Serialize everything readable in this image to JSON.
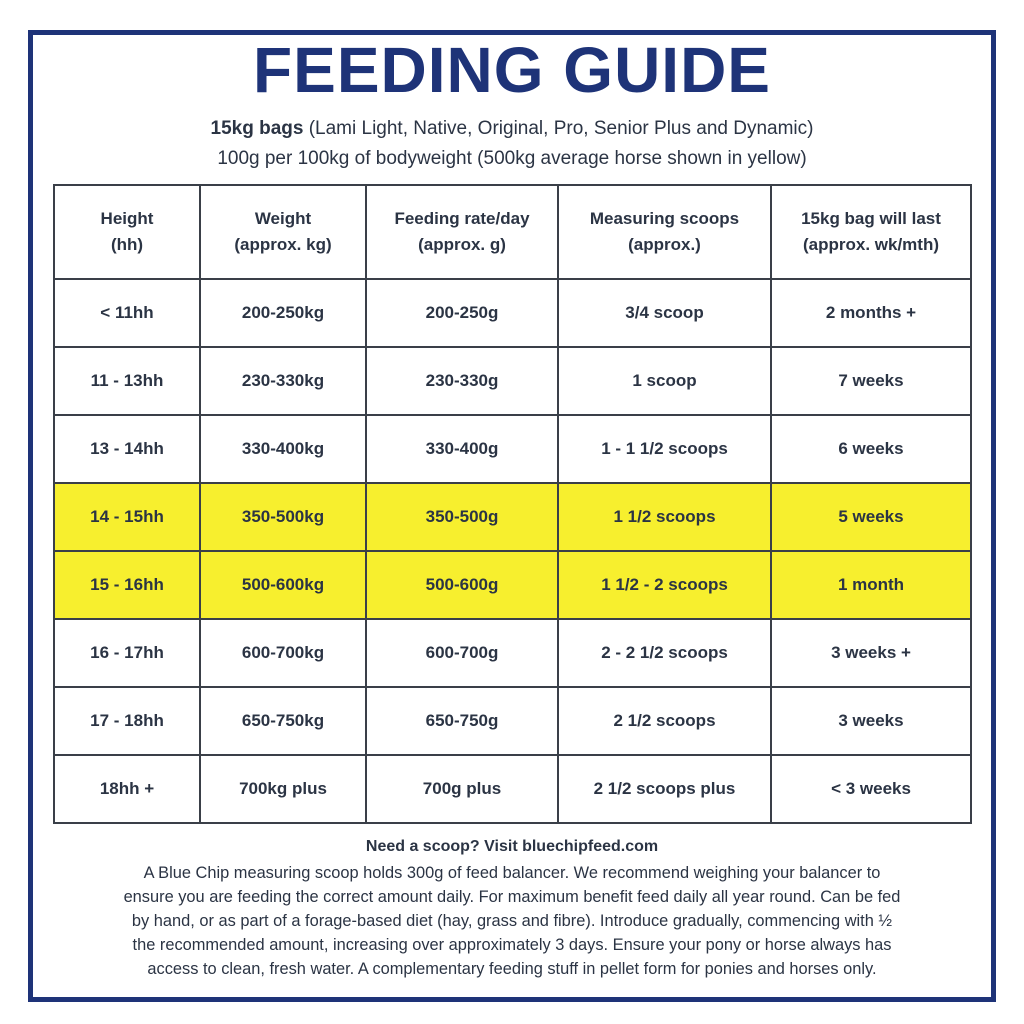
{
  "title": "FEEDING GUIDE",
  "subtitle": {
    "bold": "15kg bags",
    "rest": " (Lami Light, Native, Original, Pro, Senior Plus and Dynamic)",
    "line2": "100g per 100kg of bodyweight (500kg average horse shown in yellow)"
  },
  "colors": {
    "border": "#1e3378",
    "title": "#1e3378",
    "highlight": "#f7ef2e"
  },
  "table": {
    "headers": [
      [
        "Height",
        "(hh)"
      ],
      [
        "Weight",
        "(approx. kg)"
      ],
      [
        "Feeding rate/day",
        "(approx. g)"
      ],
      [
        "Measuring scoops",
        "(approx.)"
      ],
      [
        "15kg bag will last",
        "(approx. wk/mth)"
      ]
    ],
    "rows": [
      {
        "cells": [
          "< 11hh",
          "200-250kg",
          "200-250g",
          "3/4 scoop",
          "2 months +"
        ],
        "highlight": false
      },
      {
        "cells": [
          "11 - 13hh",
          "230-330kg",
          "230-330g",
          "1 scoop",
          "7 weeks"
        ],
        "highlight": false
      },
      {
        "cells": [
          "13 - 14hh",
          "330-400kg",
          "330-400g",
          "1 - 1 1/2 scoops",
          "6 weeks"
        ],
        "highlight": false
      },
      {
        "cells": [
          "14 - 15hh",
          "350-500kg",
          "350-500g",
          "1 1/2 scoops",
          "5 weeks"
        ],
        "highlight": true
      },
      {
        "cells": [
          "15 - 16hh",
          "500-600kg",
          "500-600g",
          "1 1/2 - 2 scoops",
          "1 month"
        ],
        "highlight": true
      },
      {
        "cells": [
          "16 - 17hh",
          "600-700kg",
          "600-700g",
          "2 - 2 1/2 scoops",
          "3 weeks +"
        ],
        "highlight": false
      },
      {
        "cells": [
          "17 - 18hh",
          "650-750kg",
          "650-750g",
          "2 1/2 scoops",
          "3 weeks"
        ],
        "highlight": false
      },
      {
        "cells": [
          "18hh +",
          "700kg plus",
          "700g plus",
          "2 1/2 scoops plus",
          "< 3 weeks"
        ],
        "highlight": false
      }
    ]
  },
  "footer": {
    "heading": "Need a scoop? Visit bluechipfeed.com",
    "lines": [
      "A Blue Chip measuring scoop holds 300g of feed balancer. We recommend weighing your balancer to",
      "ensure you are feeding the correct amount daily. For maximum benefit feed daily all year round. Can be fed",
      "by hand, or as part of a forage-based diet (hay, grass and fibre). Introduce gradually, commencing with ½",
      "the recommended amount, increasing over approximately 3 days. Ensure your pony or horse always has",
      "access to clean, fresh water. A complementary feeding stuff in pellet form for ponies and horses only."
    ]
  }
}
